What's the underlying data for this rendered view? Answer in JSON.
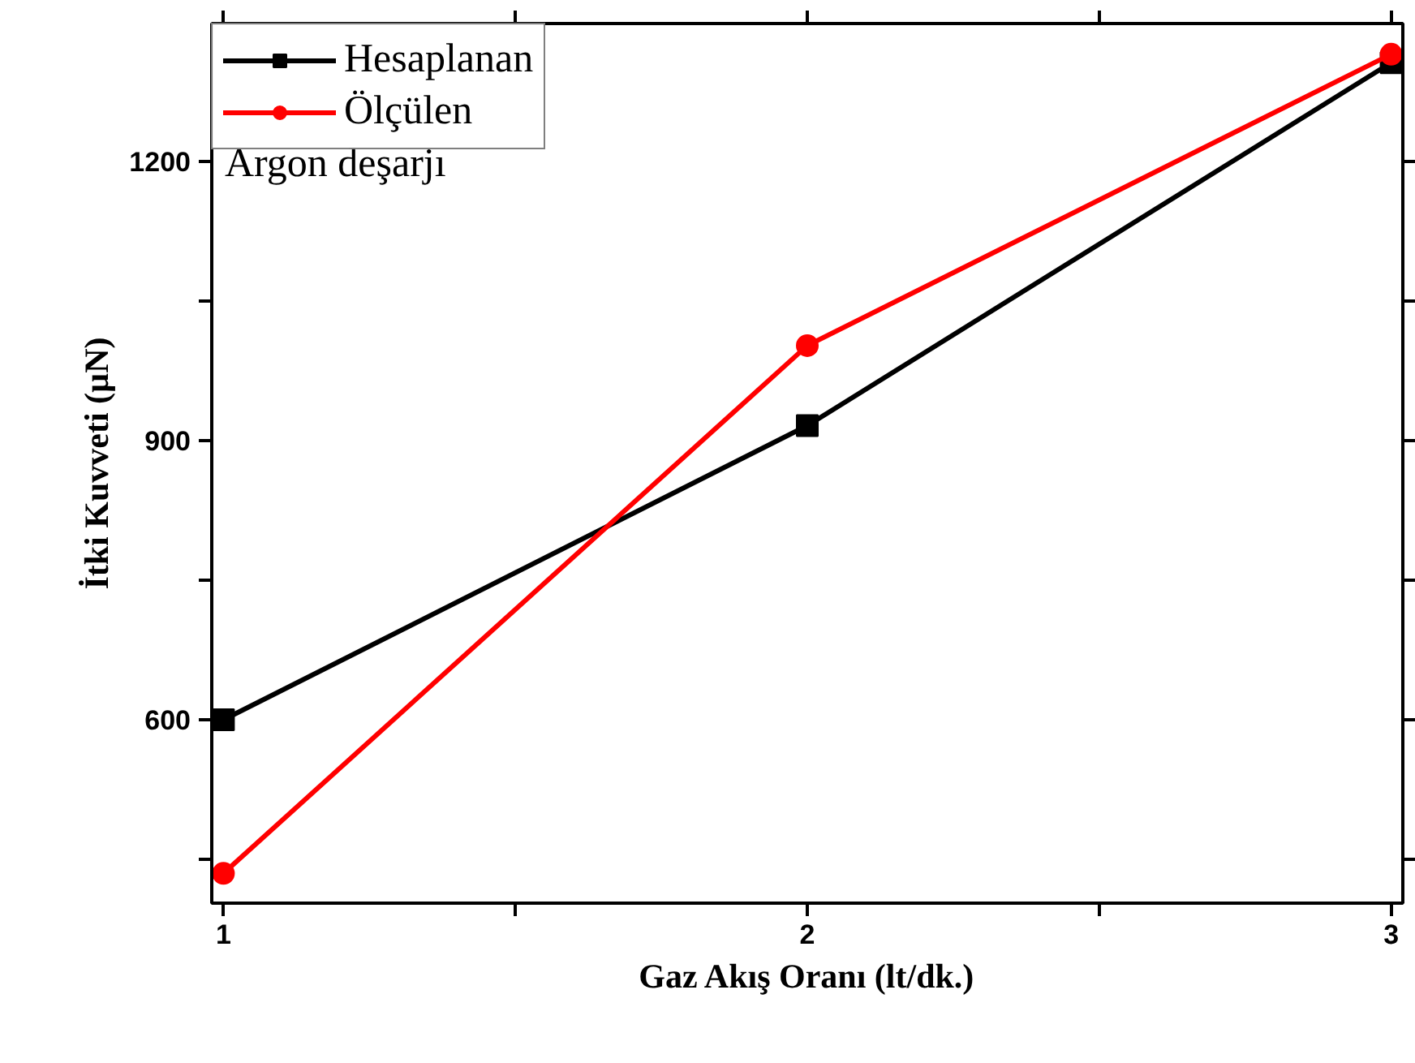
{
  "chart_data": {
    "type": "line",
    "xlabel": "Gaz Akış Oranı (lt/dk.)",
    "ylabel": "İtki Kuvveti (µN)",
    "x": [
      1,
      2,
      3
    ],
    "series": [
      {
        "name": "Hesaplanan",
        "color": "#000000",
        "marker": "square",
        "values": [
          600,
          916,
          1306
        ]
      },
      {
        "name": "Ölçülen",
        "color": "#ff0000",
        "marker": "circle",
        "values": [
          435,
          1002,
          1315
        ]
      }
    ],
    "xlim": [
      0.98,
      3.02
    ],
    "xticks": [
      1,
      {
        "value": 1.5,
        "label": null
      },
      2,
      {
        "value": 2.5,
        "label": null
      },
      3
    ],
    "ylim": [
      403,
      1348
    ],
    "yticks": [
      {
        "value": 450,
        "label": null
      },
      600,
      {
        "value": 750,
        "label": null
      },
      900,
      {
        "value": 1050,
        "label": null
      },
      1200
    ],
    "annotations": [
      "Argon deşarjı"
    ],
    "legend": "top left",
    "grid": false,
    "line_style": "solid"
  }
}
